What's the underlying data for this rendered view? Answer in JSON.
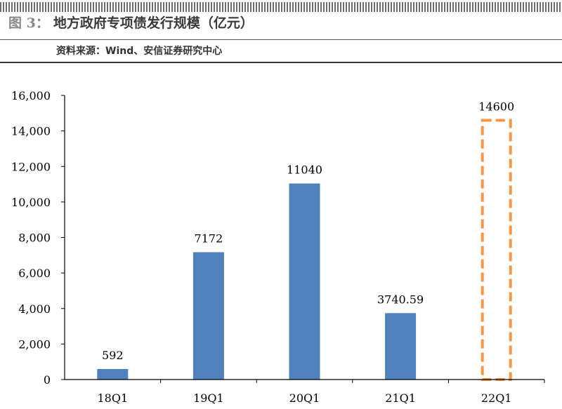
{
  "figure": {
    "number": "图 3：",
    "title": "地方政府专项债发行规模（亿元）",
    "source": "资料来源：Wind、安信证券研究中心"
  },
  "colors": {
    "bar": "#4f81bd",
    "highlight": "#f79646",
    "axis": "#000000"
  },
  "chart_data": {
    "type": "bar",
    "title": "",
    "xlabel": "",
    "ylabel": "",
    "categories": [
      "18Q1",
      "19Q1",
      "20Q1",
      "21Q1",
      "22Q1"
    ],
    "values": [
      592,
      7172,
      11040,
      3740.59,
      14600
    ],
    "data_labels": [
      "592",
      "7172",
      "11040",
      "3740.59",
      "14600"
    ],
    "highlighted": [
      false,
      false,
      false,
      false,
      true
    ],
    "ylim": [
      0,
      16000
    ],
    "yticks": [
      0,
      2000,
      4000,
      6000,
      8000,
      10000,
      12000,
      14000,
      16000
    ],
    "ytick_labels": [
      "0",
      "2,000",
      "4,000",
      "6,000",
      "8,000",
      "10,000",
      "12,000",
      "14,000",
      "16,000"
    ],
    "grid": false,
    "legend": "none"
  }
}
